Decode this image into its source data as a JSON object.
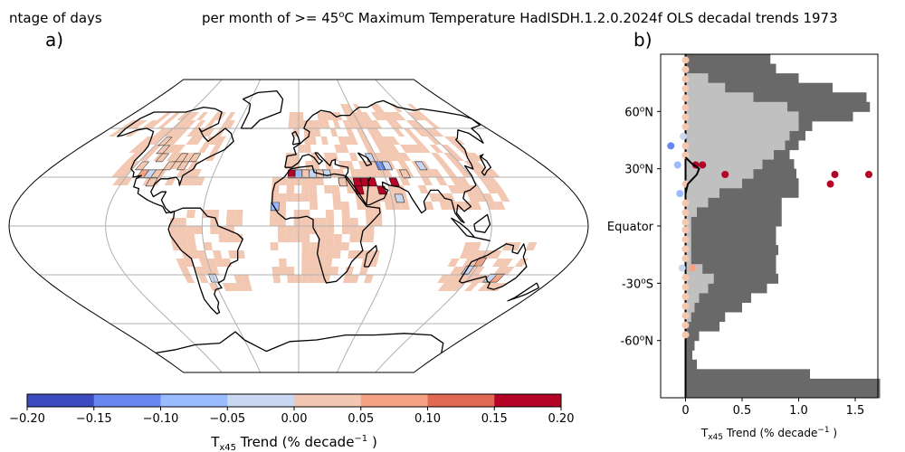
{
  "figure": {
    "title_left": "ntage of days",
    "title_right": "per month of >= 45",
    "title_sup": "o",
    "title_rest": "C Maximum Temperature HadISDH.1.2.0.2024f OLS decadal trends 1973"
  },
  "panels": {
    "a": "a)",
    "b": "b)"
  },
  "colorbar": {
    "label_main": "T",
    "label_sub": "x45",
    "label_rest": " Trend (% decade",
    "label_sup": "−1",
    "label_end": " )",
    "colors": [
      "#3b4cc0",
      "#6788ee",
      "#9abbff",
      "#c9d7f0",
      "#f3c8b3",
      "#f6a385",
      "#e26952",
      "#b40426"
    ],
    "ticks": [
      "−0.20",
      "−0.15",
      "−0.10",
      "−0.05",
      "0.00",
      "0.05",
      "0.10",
      "0.15",
      "0.20"
    ]
  },
  "chart_data": [
    {
      "type": "heatmap",
      "panel": "a",
      "description_of_values": "gridded decadal trend of T_x45",
      "vmin": -0.2,
      "vmax": 0.2,
      "cells": [
        {
          "lon": -115,
          "lat": 52,
          "v": 0.02
        },
        {
          "lon": -110,
          "lat": 47,
          "v": 0.02
        },
        {
          "lon": -105,
          "lat": 42,
          "v": 0.02
        },
        {
          "lon": -115,
          "lat": 37,
          "v": 0.02
        },
        {
          "lon": -110,
          "lat": 32,
          "v": 0.08
        },
        {
          "lon": -105,
          "lat": 32,
          "v": -0.04
        },
        {
          "lon": -100,
          "lat": 32,
          "v": 0.02
        },
        {
          "lon": -95,
          "lat": 37,
          "v": 0.02
        },
        {
          "lon": -90,
          "lat": 42,
          "v": 0.02
        },
        {
          "lon": -85,
          "lat": 37,
          "v": 0.02
        },
        {
          "lon": -80,
          "lat": 42,
          "v": 0.02
        },
        {
          "lon": -100,
          "lat": 27,
          "v": 0.02
        },
        {
          "lon": -5,
          "lat": 32,
          "v": 0.18
        },
        {
          "lon": 0,
          "lat": 32,
          "v": -0.08
        },
        {
          "lon": 5,
          "lat": 32,
          "v": 0.02
        },
        {
          "lon": 10,
          "lat": 32,
          "v": -0.04
        },
        {
          "lon": 15,
          "lat": 32,
          "v": 0.02
        },
        {
          "lon": 20,
          "lat": 32,
          "v": -0.04
        },
        {
          "lon": 30,
          "lat": 27,
          "v": 0.02
        },
        {
          "lon": 40,
          "lat": 27,
          "v": 0.18
        },
        {
          "lon": 45,
          "lat": 27,
          "v": 0.18
        },
        {
          "lon": 50,
          "lat": 27,
          "v": 0.18
        },
        {
          "lon": 55,
          "lat": 22,
          "v": 0.18
        },
        {
          "lon": 65,
          "lat": 27,
          "v": 0.18
        },
        {
          "lon": 40,
          "lat": 22,
          "v": 0.18
        },
        {
          "lon": 55,
          "lat": 42,
          "v": -0.04
        },
        {
          "lon": 60,
          "lat": 37,
          "v": -0.12
        },
        {
          "lon": 65,
          "lat": 37,
          "v": -0.04
        },
        {
          "lon": 75,
          "lat": 32,
          "v": 0.02
        },
        {
          "lon": 90,
          "lat": 37,
          "v": -0.04
        },
        {
          "lon": -15,
          "lat": 12,
          "v": -0.08
        },
        {
          "lon": 65,
          "lat": 17,
          "v": -0.04
        },
        {
          "lon": 120,
          "lat": -22,
          "v": 0.08
        },
        {
          "lon": 115,
          "lat": -27,
          "v": -0.04
        },
        {
          "lon": 135,
          "lat": -32,
          "v": -0.04
        },
        {
          "lon": 140,
          "lat": -32,
          "v": 0.08
        },
        {
          "lon": -60,
          "lat": -32,
          "v": -0.04
        }
      ]
    },
    {
      "type": "scatter",
      "panel": "b",
      "xlabel_main": "T",
      "xlabel_sub": "x45",
      "xlabel_rest": " Trend (% decade",
      "xlabel_sup": "−1",
      "xlabel_end": " )",
      "xlim": [
        -0.22,
        1.7
      ],
      "ylim": [
        -90,
        90
      ],
      "xticks": [
        "0",
        "0.5",
        "1.0",
        "1.5"
      ],
      "yticks": [
        {
          "lat": 60,
          "label": "60",
          "sup": "o",
          "suffix": "N"
        },
        {
          "lat": 30,
          "label": "30",
          "sup": "o",
          "suffix": "N"
        },
        {
          "lat": 0,
          "label": "Equator",
          "sup": "",
          "suffix": ""
        },
        {
          "lat": -30,
          "label": "-30",
          "sup": "o",
          "suffix": "S"
        },
        {
          "lat": -60,
          "label": "-60",
          "sup": "o",
          "suffix": "N"
        }
      ],
      "dark_extent": [
        [
          87.5,
          0.75
        ],
        [
          82.5,
          0.8
        ],
        [
          77.5,
          1.0
        ],
        [
          72.5,
          1.3
        ],
        [
          67.5,
          1.6
        ],
        [
          62.5,
          1.63
        ],
        [
          57.5,
          1.48
        ],
        [
          52.5,
          1.12
        ],
        [
          47.5,
          1.06
        ],
        [
          42.5,
          1.0
        ],
        [
          37.5,
          0.92
        ],
        [
          32.5,
          0.96
        ],
        [
          27.5,
          0.98
        ],
        [
          22.5,
          1.0
        ],
        [
          17.5,
          1.0
        ],
        [
          12.5,
          0.85
        ],
        [
          7.5,
          0.85
        ],
        [
          2.5,
          0.85
        ],
        [
          -2.5,
          0.8
        ],
        [
          -7.5,
          0.8
        ],
        [
          -12.5,
          0.82
        ],
        [
          -17.5,
          0.8
        ],
        [
          -22.5,
          0.8
        ],
        [
          -27.5,
          0.82
        ],
        [
          -32.5,
          0.72
        ],
        [
          -37.5,
          0.58
        ],
        [
          -42.5,
          0.5
        ],
        [
          -47.5,
          0.35
        ],
        [
          -52.5,
          0.3
        ],
        [
          -57.5,
          0.12
        ],
        [
          -62.5,
          0.08
        ],
        [
          -67.5,
          0.06
        ],
        [
          -72.5,
          0.1
        ],
        [
          -77.5,
          1.1
        ],
        [
          -82.5,
          1.72
        ],
        [
          -87.5,
          1.72
        ]
      ],
      "light_extent": [
        [
          77.5,
          0.2
        ],
        [
          72.5,
          0.35
        ],
        [
          67.5,
          0.6
        ],
        [
          62.5,
          0.9
        ],
        [
          57.5,
          1.0
        ],
        [
          52.5,
          1.0
        ],
        [
          47.5,
          0.92
        ],
        [
          42.5,
          0.88
        ],
        [
          37.5,
          0.78
        ],
        [
          32.5,
          0.68
        ],
        [
          27.5,
          0.6
        ],
        [
          22.5,
          0.5
        ],
        [
          17.5,
          0.3
        ],
        [
          12.5,
          0.2
        ],
        [
          7.5,
          0.1
        ],
        [
          2.5,
          0.05
        ],
        [
          -2.5,
          0.05
        ],
        [
          -7.5,
          0.05
        ],
        [
          -12.5,
          0.05
        ],
        [
          -17.5,
          0.05
        ],
        [
          -22.5,
          0.15
        ],
        [
          -27.5,
          0.25
        ],
        [
          -32.5,
          0.2
        ],
        [
          -37.5,
          0.12
        ],
        [
          -42.5,
          0.08
        ],
        [
          -47.5,
          0.05
        ]
      ],
      "points": [
        {
          "lat": 32,
          "x": 0.15,
          "v": 0.18
        },
        {
          "lat": 27,
          "x": 0.35,
          "v": 0.18
        },
        {
          "lat": 27,
          "x": 1.32,
          "v": 0.18
        },
        {
          "lat": 27,
          "x": 1.62,
          "v": 0.18
        },
        {
          "lat": 22,
          "x": 1.28,
          "v": 0.18
        },
        {
          "lat": 32,
          "x": 0.09,
          "v": 0.18
        },
        {
          "lat": 42,
          "x": -0.13,
          "v": -0.12
        },
        {
          "lat": 32,
          "x": -0.07,
          "v": -0.08
        },
        {
          "lat": 17,
          "x": -0.05,
          "v": -0.08
        },
        {
          "lat": -22,
          "x": 0.06,
          "v": 0.08
        },
        {
          "lat": -22,
          "x": -0.03,
          "v": -0.04
        },
        {
          "lat": 87,
          "x": 0,
          "v": 0.02
        },
        {
          "lat": 82,
          "x": 0,
          "v": 0.02
        },
        {
          "lat": 77,
          "x": 0,
          "v": 0.02
        },
        {
          "lat": 72,
          "x": 0,
          "v": 0.02
        },
        {
          "lat": 67,
          "x": 0,
          "v": 0.02
        },
        {
          "lat": 62,
          "x": 0,
          "v": 0.02
        },
        {
          "lat": 57,
          "x": 0,
          "v": 0.02
        },
        {
          "lat": 52,
          "x": 0,
          "v": 0.02
        },
        {
          "lat": 47,
          "x": -0.02,
          "v": -0.04
        },
        {
          "lat": 42,
          "x": 0,
          "v": 0.02
        },
        {
          "lat": 37,
          "x": 0,
          "v": 0.02
        },
        {
          "lat": 22,
          "x": 0,
          "v": 0.02
        },
        {
          "lat": 12,
          "x": 0,
          "v": 0.02
        },
        {
          "lat": 7,
          "x": 0,
          "v": 0.02
        },
        {
          "lat": 2,
          "x": 0,
          "v": 0.02
        },
        {
          "lat": -2,
          "x": 0,
          "v": 0.02
        },
        {
          "lat": -7,
          "x": 0,
          "v": 0.02
        },
        {
          "lat": -12,
          "x": 0,
          "v": 0.02
        },
        {
          "lat": -17,
          "x": 0,
          "v": 0.02
        },
        {
          "lat": -27,
          "x": 0,
          "v": 0.02
        },
        {
          "lat": -32,
          "x": 0,
          "v": 0.02
        },
        {
          "lat": -37,
          "x": 0,
          "v": 0.02
        },
        {
          "lat": -42,
          "x": 0,
          "v": 0.02
        },
        {
          "lat": -47,
          "x": 0,
          "v": 0.02
        },
        {
          "lat": -52,
          "x": 0,
          "v": 0.02
        },
        {
          "lat": -57,
          "x": 0,
          "v": 0.02
        }
      ],
      "zonal_mean": [
        [
          17,
          0
        ],
        [
          22,
          0.02
        ],
        [
          27,
          0.1
        ],
        [
          30,
          0.12
        ],
        [
          33,
          0.05
        ],
        [
          36,
          0
        ]
      ]
    }
  ]
}
